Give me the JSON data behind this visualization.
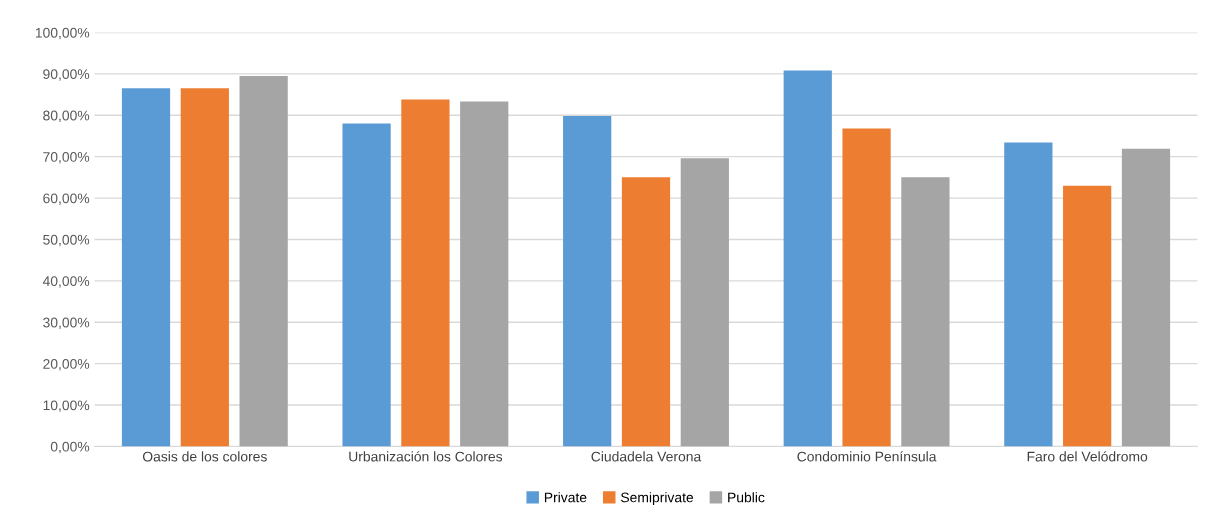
{
  "chart_data": {
    "type": "bar",
    "categories": [
      "Oasis de los colores",
      "Urbanización los Colores",
      "Ciudadela Verona",
      "Condominio Península",
      "Faro del Velódromo"
    ],
    "series": [
      {
        "name": "Private",
        "color": "#5b9bd5",
        "values": [
          86.5,
          78.0,
          79.8,
          90.8,
          73.4
        ]
      },
      {
        "name": "Semiprivate",
        "color": "#ed7d31",
        "values": [
          86.5,
          83.8,
          65.0,
          76.8,
          63.0
        ]
      },
      {
        "name": "Public",
        "color": "#a5a5a5",
        "values": [
          89.5,
          83.3,
          69.6,
          65.0,
          71.9
        ]
      }
    ],
    "ylim": [
      0,
      100
    ],
    "yticks": [
      {
        "value": 0,
        "label": "0,00%"
      },
      {
        "value": 10,
        "label": "10,00%"
      },
      {
        "value": 20,
        "label": "20,00%"
      },
      {
        "value": 30,
        "label": "30,00%"
      },
      {
        "value": 40,
        "label": "40,00%"
      },
      {
        "value": 50,
        "label": "50,00%"
      },
      {
        "value": 60,
        "label": "60,00%"
      },
      {
        "value": 70,
        "label": "70,00%"
      },
      {
        "value": 80,
        "label": "80,00%"
      },
      {
        "value": 90,
        "label": "90,00%"
      },
      {
        "value": 100,
        "label": "100,00%"
      }
    ],
    "grid": "y",
    "legend": "bottom"
  }
}
